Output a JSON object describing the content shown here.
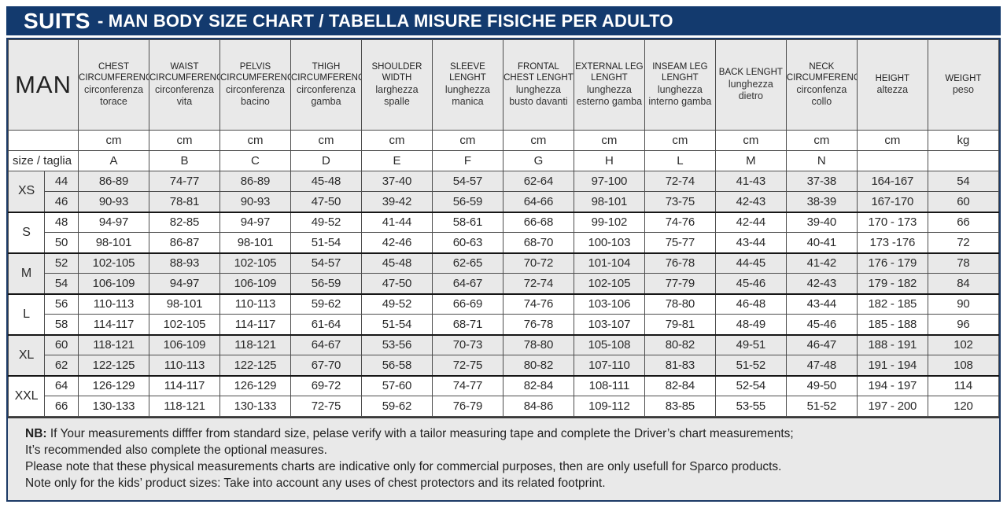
{
  "title": {
    "brand": "SUITS",
    "rest": "- MAN BODY SIZE CHART / TABELLA MISURE FISICHE PER ADULTO"
  },
  "colors": {
    "navy": "#133a6e",
    "row_gray": "#e9e9e9",
    "grid_line": "#4d4d4d"
  },
  "table": {
    "man_label": "MAN",
    "size_row_label": "size / taglia",
    "columns": [
      {
        "en": "CHEST CIRCUMFERENCE",
        "it": "circonferenza torace",
        "unit": "cm",
        "letter": "A"
      },
      {
        "en": "WAIST CIRCUMFERENCE",
        "it": "circonferenza vita",
        "unit": "cm",
        "letter": "B"
      },
      {
        "en": "PELVIS CIRCUMFERENCE",
        "it": "circonferenza bacino",
        "unit": "cm",
        "letter": "C"
      },
      {
        "en": "THIGH CIRCUMFERENCE",
        "it": "circonferenza gamba",
        "unit": "cm",
        "letter": "D"
      },
      {
        "en": "SHOULDER WIDTH",
        "it": "larghezza spalle",
        "unit": "cm",
        "letter": "E"
      },
      {
        "en": "SLEEVE LENGHT",
        "it": "lunghezza manica",
        "unit": "cm",
        "letter": "F"
      },
      {
        "en": "FRONTAL CHEST LENGHT",
        "it": "lunghezza busto davanti",
        "unit": "cm",
        "letter": "G"
      },
      {
        "en": "EXTERNAL LEG LENGHT",
        "it": "lunghezza esterno gamba",
        "unit": "cm",
        "letter": "H"
      },
      {
        "en": "INSEAM LEG LENGHT",
        "it": "lunghezza interno gamba",
        "unit": "cm",
        "letter": "L"
      },
      {
        "en": "BACK LENGHT",
        "it": "lunghezza dietro",
        "unit": "cm",
        "letter": "M"
      },
      {
        "en": "NECK CIRCUMFERENCE",
        "it": "circonfenza collo",
        "unit": "cm",
        "letter": "N"
      },
      {
        "en": "HEIGHT",
        "it": "altezza",
        "unit": "cm",
        "letter": ""
      },
      {
        "en": "WEIGHT",
        "it": "peso",
        "unit": "kg",
        "letter": ""
      }
    ],
    "groups": [
      {
        "label": "XS",
        "rows": [
          {
            "size": "44",
            "values": [
              "86-89",
              "74-77",
              "86-89",
              "45-48",
              "37-40",
              "54-57",
              "62-64",
              "97-100",
              "72-74",
              "41-43",
              "37-38",
              "164-167",
              "54"
            ]
          },
          {
            "size": "46",
            "values": [
              "90-93",
              "78-81",
              "90-93",
              "47-50",
              "39-42",
              "56-59",
              "64-66",
              "98-101",
              "73-75",
              "42-43",
              "38-39",
              "167-170",
              "60"
            ]
          }
        ]
      },
      {
        "label": "S",
        "rows": [
          {
            "size": "48",
            "values": [
              "94-97",
              "82-85",
              "94-97",
              "49-52",
              "41-44",
              "58-61",
              "66-68",
              "99-102",
              "74-76",
              "42-44",
              "39-40",
              "170 - 173",
              "66"
            ]
          },
          {
            "size": "50",
            "values": [
              "98-101",
              "86-87",
              "98-101",
              "51-54",
              "42-46",
              "60-63",
              "68-70",
              "100-103",
              "75-77",
              "43-44",
              "40-41",
              "173 -176",
              "72"
            ]
          }
        ]
      },
      {
        "label": "M",
        "rows": [
          {
            "size": "52",
            "values": [
              "102-105",
              "88-93",
              "102-105",
              "54-57",
              "45-48",
              "62-65",
              "70-72",
              "101-104",
              "76-78",
              "44-45",
              "41-42",
              "176 - 179",
              "78"
            ]
          },
          {
            "size": "54",
            "values": [
              "106-109",
              "94-97",
              "106-109",
              "56-59",
              "47-50",
              "64-67",
              "72-74",
              "102-105",
              "77-79",
              "45-46",
              "42-43",
              "179 - 182",
              "84"
            ]
          }
        ]
      },
      {
        "label": "L",
        "rows": [
          {
            "size": "56",
            "values": [
              "110-113",
              "98-101",
              "110-113",
              "59-62",
              "49-52",
              "66-69",
              "74-76",
              "103-106",
              "78-80",
              "46-48",
              "43-44",
              "182 - 185",
              "90"
            ]
          },
          {
            "size": "58",
            "values": [
              "114-117",
              "102-105",
              "114-117",
              "61-64",
              "51-54",
              "68-71",
              "76-78",
              "103-107",
              "79-81",
              "48-49",
              "45-46",
              "185 - 188",
              "96"
            ]
          }
        ]
      },
      {
        "label": "XL",
        "rows": [
          {
            "size": "60",
            "values": [
              "118-121",
              "106-109",
              "118-121",
              "64-67",
              "53-56",
              "70-73",
              "78-80",
              "105-108",
              "80-82",
              "49-51",
              "46-47",
              "188 - 191",
              "102"
            ]
          },
          {
            "size": "62",
            "values": [
              "122-125",
              "110-113",
              "122-125",
              "67-70",
              "56-58",
              "72-75",
              "80-82",
              "107-110",
              "81-83",
              "51-52",
              "47-48",
              "191 - 194",
              "108"
            ]
          }
        ]
      },
      {
        "label": "XXL",
        "rows": [
          {
            "size": "64",
            "values": [
              "126-129",
              "114-117",
              "126-129",
              "69-72",
              "57-60",
              "74-77",
              "82-84",
              "108-111",
              "82-84",
              "52-54",
              "49-50",
              "194 - 197",
              "114"
            ]
          },
          {
            "size": "66",
            "values": [
              "130-133",
              "118-121",
              "130-133",
              "72-75",
              "59-62",
              "76-79",
              "84-86",
              "109-112",
              "83-85",
              "53-55",
              "51-52",
              "197 - 200",
              "120"
            ]
          }
        ]
      }
    ]
  },
  "footer": {
    "nb_label": "NB:",
    "line1": "If Your measurements difffer from standard size, pelase verify with a tailor measuring tape and complete the Driver’s chart measurements;",
    "line2": "It’s recommended also complete the optional measures.",
    "line3": "Please note that these physical measurements charts are indicative only for commercial purposes, then are only usefull for Sparco products.",
    "line4": "Note only for the kids’ product sizes: Take into account any uses of chest protectors and its related footprint."
  }
}
